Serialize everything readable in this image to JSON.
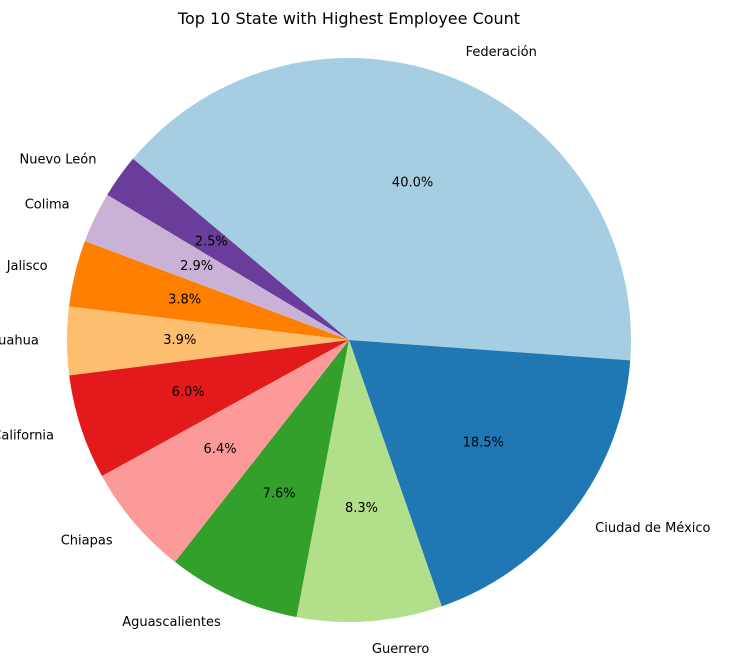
{
  "chart_data": {
    "type": "pie",
    "title": "Top 10 State with Highest Employee Count",
    "categories": [
      "Federación",
      "Ciudad de México",
      "Guerrero",
      "Aguascalientes",
      "Chiapas",
      "Baja California",
      "Chihuahua",
      "Jalisco",
      "Colima",
      "Nuevo León"
    ],
    "values": [
      40.0,
      18.5,
      8.3,
      7.6,
      6.4,
      6.0,
      3.9,
      3.8,
      2.9,
      2.5
    ],
    "value_labels": [
      "40.0%",
      "18.5%",
      "8.3%",
      "7.6%",
      "6.4%",
      "6.0%",
      "3.9%",
      "3.8%",
      "2.9%",
      "2.5%"
    ],
    "colors": [
      "#a6cee3",
      "#1f78b4",
      "#b2df8a",
      "#33a02c",
      "#fb9a99",
      "#e31a1c",
      "#fdbf6f",
      "#ff7f00",
      "#cab2d6",
      "#6a3d9a"
    ],
    "start_angle_deg": 140,
    "direction": "clockwise"
  }
}
